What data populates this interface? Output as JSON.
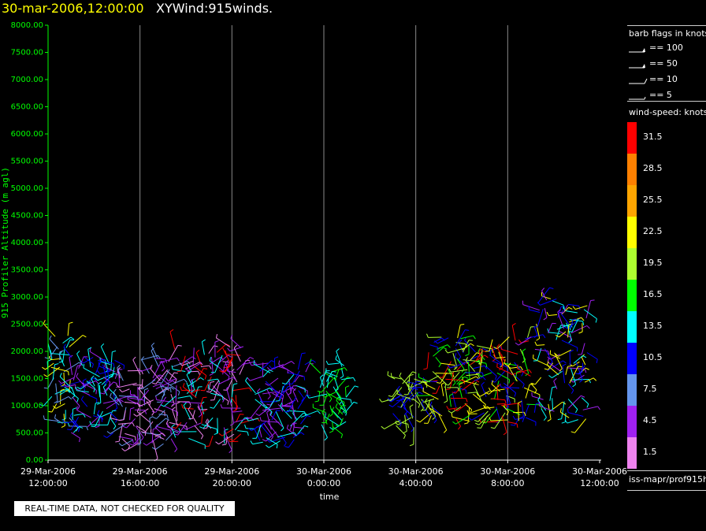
{
  "header": {
    "date_label": "30-mar-2006,12:00:00",
    "product_label": "XYWind:915winds."
  },
  "notice": "REAL-TIME DATA, NOT CHECKED FOR QUALITY",
  "legend": {
    "barb_title": "barb flags in knots",
    "flags": [
      {
        "label": "== 100",
        "kind": "pennant"
      },
      {
        "label": "== 50",
        "kind": "pennant"
      },
      {
        "label": "== 10",
        "kind": "full"
      },
      {
        "label": "== 5",
        "kind": "half"
      }
    ],
    "colorbar_title": "wind-speed: knots",
    "colorbar": [
      {
        "label": "31.5",
        "color": "#ff0000"
      },
      {
        "label": "28.5",
        "color": "#ff8000"
      },
      {
        "label": "25.5",
        "color": "#ffa500"
      },
      {
        "label": "22.5",
        "color": "#ffff00"
      },
      {
        "label": "19.5",
        "color": "#adff2f"
      },
      {
        "label": "16.5",
        "color": "#00ff00"
      },
      {
        "label": "13.5",
        "color": "#00ffff"
      },
      {
        "label": "10.5",
        "color": "#0000ff"
      },
      {
        "label": "7.5",
        "color": "#6495ed"
      },
      {
        "label": "4.5",
        "color": "#a020f0"
      },
      {
        "label": "1.5",
        "color": "#ee82ee"
      }
    ],
    "source_label": "iss-mapr/prof915h"
  },
  "chart_data": {
    "type": "scatter",
    "title": "XYWind:915winds.",
    "xlabel": "time",
    "ylabel": "915 Profiler Altitude (m agl)",
    "ylim": [
      0,
      8000
    ],
    "y_ticks": [
      "0.00",
      "500.00",
      "1000.00",
      "1500.00",
      "2000.00",
      "2500.00",
      "3000.00",
      "3500.00",
      "4000.00",
      "4500.00",
      "5000.00",
      "5500.00",
      "6000.00",
      "6500.00",
      "7000.00",
      "7500.00",
      "8000.00"
    ],
    "x_ticks": [
      {
        "date": "29-Mar-2006",
        "time": "12:00:00"
      },
      {
        "date": "29-Mar-2006",
        "time": "16:00:00"
      },
      {
        "date": "29-Mar-2006",
        "time": "20:00:00"
      },
      {
        "date": "30-Mar-2006",
        "time": "0:00:00"
      },
      {
        "date": "30-Mar-2006",
        "time": "4:00:00"
      },
      {
        "date": "30-Mar-2006",
        "time": "8:00:00"
      },
      {
        "date": "30-Mar-2006",
        "time": "12:00:00"
      }
    ],
    "grid": "vertical",
    "clusters": [
      {
        "x_hours": [
          0.0,
          1.0
        ],
        "alt": [
          400,
          2300
        ],
        "dominant": [
          "#00ffff",
          "#6495ed",
          "#ffff00"
        ]
      },
      {
        "x_hours": [
          1.0,
          3.0
        ],
        "alt": [
          500,
          1900
        ],
        "dominant": [
          "#0000ff",
          "#a020f0",
          "#00ffff"
        ]
      },
      {
        "x_hours": [
          3.0,
          5.5
        ],
        "alt": [
          300,
          1900
        ],
        "dominant": [
          "#a020f0",
          "#ee82ee",
          "#6495ed"
        ]
      },
      {
        "x_hours": [
          5.5,
          8.5
        ],
        "alt": [
          300,
          2100
        ],
        "dominant": [
          "#a020f0",
          "#00ffff",
          "#ee82ee",
          "#ff0000"
        ]
      },
      {
        "x_hours": [
          9.0,
          11.3
        ],
        "alt": [
          300,
          1800
        ],
        "dominant": [
          "#0000ff",
          "#00ffff",
          "#a020f0"
        ]
      },
      {
        "x_hours": [
          11.8,
          13.0
        ],
        "alt": [
          600,
          1800
        ],
        "dominant": [
          "#00ffff",
          "#00ff00"
        ]
      },
      {
        "x_hours": [
          15.0,
          16.0
        ],
        "alt": [
          600,
          1500
        ],
        "dominant": [
          "#0000ff",
          "#adff2f"
        ]
      },
      {
        "x_hours": [
          16.5,
          21.0
        ],
        "alt": [
          700,
          2300
        ],
        "dominant": [
          "#ffff00",
          "#adff2f",
          "#00ff00",
          "#0000ff",
          "#ff0000"
        ]
      },
      {
        "x_hours": [
          21.0,
          23.5
        ],
        "alt": [
          700,
          3000
        ],
        "dominant": [
          "#a020f0",
          "#0000ff",
          "#ffff00",
          "#00ffff"
        ]
      }
    ]
  }
}
